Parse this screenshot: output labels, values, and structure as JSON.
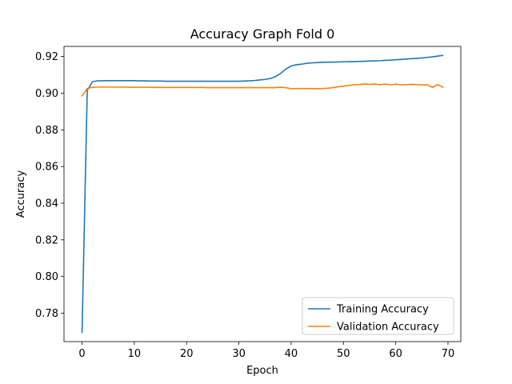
{
  "chart_data": {
    "type": "line",
    "title": "Accuracy Graph Fold 0",
    "xlabel": "Epoch",
    "ylabel": "Accuracy",
    "xlim": [
      -3.45,
      72.45
    ],
    "ylim": [
      0.7645,
      0.9255
    ],
    "xticks": [
      0,
      10,
      20,
      30,
      40,
      50,
      60,
      70
    ],
    "xtick_labels": [
      "0",
      "10",
      "20",
      "30",
      "40",
      "50",
      "60",
      "70"
    ],
    "yticks": [
      0.78,
      0.8,
      0.82,
      0.84,
      0.86,
      0.88,
      0.9,
      0.92
    ],
    "ytick_labels": [
      "0.78",
      "0.80",
      "0.82",
      "0.84",
      "0.86",
      "0.88",
      "0.90",
      "0.92"
    ],
    "grid": false,
    "legend_position": "lower-right",
    "series": [
      {
        "name": "Training Accuracy",
        "color": "#1f77b4",
        "x": [
          0,
          1,
          2,
          3,
          4,
          5,
          6,
          7,
          8,
          9,
          10,
          11,
          12,
          13,
          14,
          15,
          16,
          17,
          18,
          19,
          20,
          21,
          22,
          23,
          24,
          25,
          26,
          27,
          28,
          29,
          30,
          31,
          32,
          33,
          34,
          35,
          36,
          37,
          38,
          39,
          40,
          41,
          42,
          43,
          44,
          45,
          46,
          47,
          48,
          49,
          50,
          51,
          52,
          53,
          54,
          55,
          56,
          57,
          58,
          59,
          60,
          61,
          62,
          63,
          64,
          65,
          66,
          67,
          68,
          69
        ],
        "values": [
          0.7695,
          0.9015,
          0.9063,
          0.9067,
          0.9068,
          0.9068,
          0.9068,
          0.9068,
          0.9068,
          0.9068,
          0.9068,
          0.9067,
          0.9067,
          0.9066,
          0.9066,
          0.9066,
          0.9065,
          0.9065,
          0.9065,
          0.9065,
          0.9065,
          0.9065,
          0.9065,
          0.9065,
          0.9065,
          0.9065,
          0.9065,
          0.9065,
          0.9065,
          0.9065,
          0.9065,
          0.9066,
          0.9067,
          0.9069,
          0.9072,
          0.9075,
          0.908,
          0.909,
          0.9108,
          0.9132,
          0.9148,
          0.9155,
          0.9158,
          0.9163,
          0.9165,
          0.9167,
          0.9168,
          0.9169,
          0.9169,
          0.917,
          0.9171,
          0.9172,
          0.9172,
          0.9173,
          0.9174,
          0.9175,
          0.9176,
          0.9177,
          0.9179,
          0.918,
          0.9182,
          0.9184,
          0.9186,
          0.9188,
          0.919,
          0.9192,
          0.9195,
          0.9198,
          0.9202,
          0.9206
        ]
      },
      {
        "name": "Validation Accuracy",
        "color": "#ff7f0e",
        "x": [
          0,
          1,
          2,
          3,
          4,
          5,
          6,
          7,
          8,
          9,
          10,
          11,
          12,
          13,
          14,
          15,
          16,
          17,
          18,
          19,
          20,
          21,
          22,
          23,
          24,
          25,
          26,
          27,
          28,
          29,
          30,
          31,
          32,
          33,
          34,
          35,
          36,
          37,
          38,
          39,
          40,
          41,
          42,
          43,
          44,
          45,
          46,
          47,
          48,
          49,
          50,
          51,
          52,
          53,
          54,
          55,
          56,
          57,
          58,
          59,
          60,
          61,
          62,
          63,
          64,
          65,
          66,
          67,
          68,
          69
        ],
        "values": [
          0.8985,
          0.9025,
          0.9032,
          0.9033,
          0.9033,
          0.9033,
          0.9033,
          0.9033,
          0.9033,
          0.9032,
          0.9032,
          0.9032,
          0.9032,
          0.9032,
          0.9031,
          0.9031,
          0.9031,
          0.9031,
          0.9031,
          0.9031,
          0.9031,
          0.9031,
          0.9031,
          0.9031,
          0.903,
          0.903,
          0.903,
          0.903,
          0.903,
          0.903,
          0.903,
          0.903,
          0.903,
          0.903,
          0.903,
          0.903,
          0.903,
          0.903,
          0.9032,
          0.903,
          0.9024,
          0.9025,
          0.9025,
          0.9025,
          0.9025,
          0.9024,
          0.9025,
          0.9027,
          0.903,
          0.9035,
          0.9038,
          0.9042,
          0.9046,
          0.9047,
          0.905,
          0.9048,
          0.905,
          0.9046,
          0.905,
          0.9045,
          0.9049,
          0.9045,
          0.9046,
          0.9048,
          0.9047,
          0.9045,
          0.9046,
          0.9032,
          0.9046,
          0.9033
        ]
      }
    ]
  }
}
